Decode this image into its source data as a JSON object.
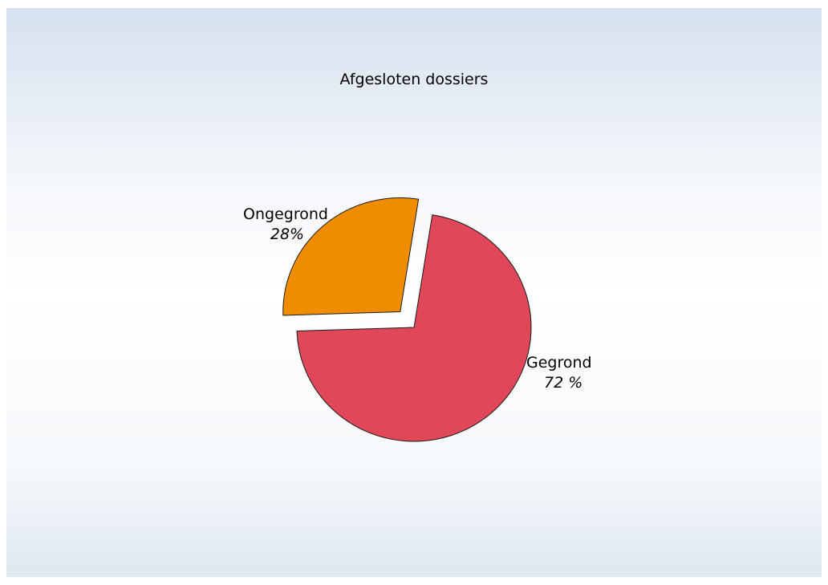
{
  "chart_data": {
    "type": "pie",
    "title": "Afgesloten dossiers",
    "slices": [
      {
        "label": "Gegrond",
        "value": 72,
        "value_label": "72 %",
        "color": "#e0485a"
      },
      {
        "label": "Ongegrond",
        "value": 28,
        "value_label": "28%",
        "color": "#f08c00",
        "exploded": true
      }
    ],
    "legend": "none"
  }
}
